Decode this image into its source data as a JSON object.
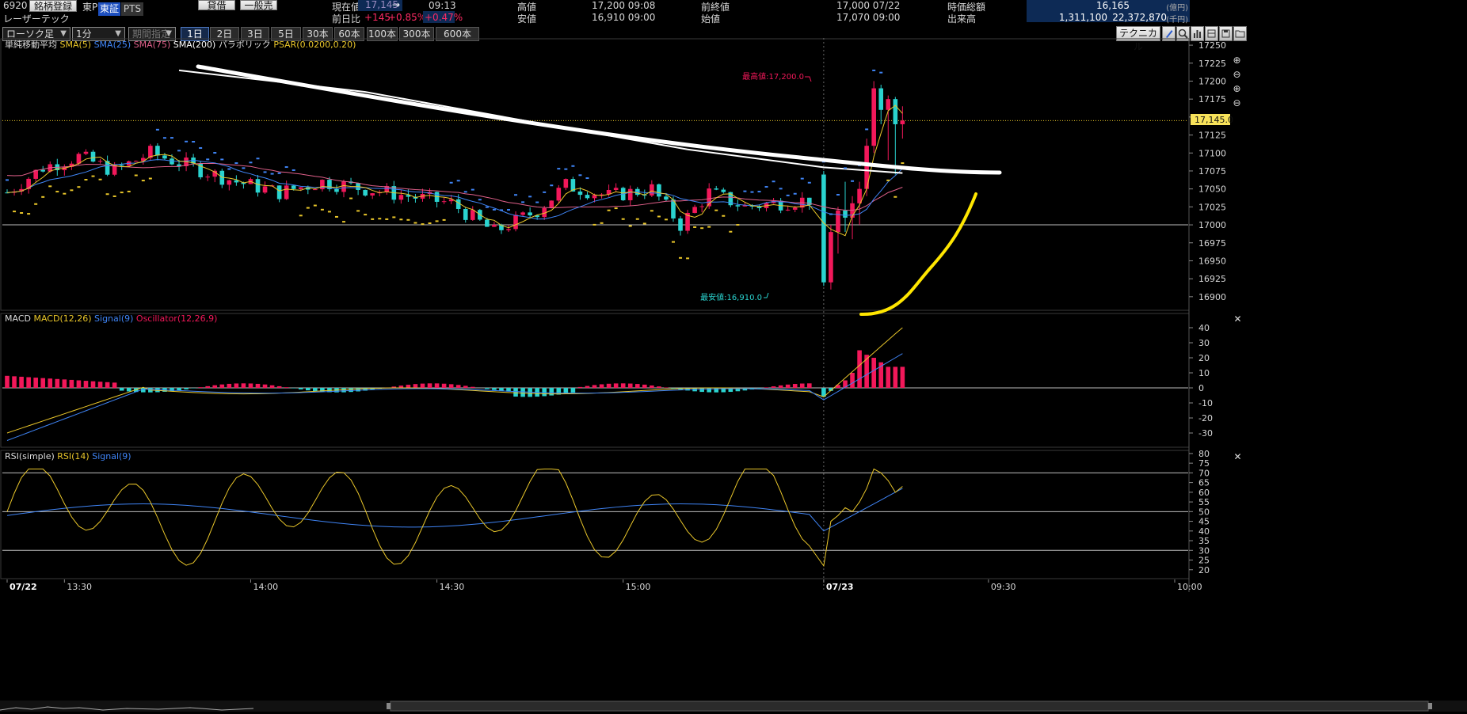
{
  "header": {
    "code": "6920",
    "name": "レーザーテック",
    "register_btn": "銘柄登録",
    "exchange": "東P",
    "market_tse": "東証",
    "market_pts": "PTS",
    "btn_credit": "貸借",
    "btn_general": "一般売",
    "cur_label": "現在値",
    "cur_value": "17,145",
    "cur_arrow": "→",
    "cur_time": "09:13",
    "chg_label": "前日比",
    "chg_value": "+145",
    "chg_pct1": "+0.85%",
    "chg_pct2": "+0.47%",
    "high_label": "高値",
    "high_value": "17,200 09:08",
    "low_label": "安値",
    "low_value": "16,910 09:00",
    "prev_label": "前終値",
    "prev_value": "17,000 07/22",
    "open_label": "始値",
    "open_value": "17,070 09:00",
    "mcap_label": "時価総額",
    "mcap_value": "16,165",
    "mcap_unit": "(億円)",
    "vol_label": "出来高",
    "vol_value": "1,311,100",
    "turnover_value": "22,372,870",
    "turnover_unit": "(千円)"
  },
  "controls": {
    "chart_type": "ローソク足",
    "interval": "1分",
    "period_placeholder": "期間指定",
    "periods": [
      "1日",
      "2日",
      "3日",
      "5日",
      "30本",
      "60本",
      "100本",
      "300本",
      "600本"
    ],
    "technical_btn": "テクニカル"
  },
  "panels": {
    "main_legend": [
      "単純移動平均",
      "SMA(5)",
      "SMA(25)",
      "SMA(75)",
      "SMA(200)",
      "パラボリック",
      "PSAR(0.0200,0.20)"
    ],
    "high_marker": "最高値:17,200.0",
    "low_marker": "最安値:16,910.0",
    "price_tag": "17,145.0",
    "macd_legend": [
      "MACD",
      "MACD(12,26)",
      "Signal(9)",
      "Oscillator(12,26,9)"
    ],
    "rsi_legend": [
      "RSI(simple)",
      "RSI(14)",
      "Signal(9)"
    ]
  },
  "x_axis": [
    "07/22",
    "13:30",
    "14:00",
    "14:30",
    "15:00",
    "07/23",
    "09:30",
    "10:00"
  ],
  "colors": {
    "up": "#f2185a",
    "down": "#2ad3cf",
    "sma5": "#e9c62a",
    "sma25": "#3f84f5",
    "sma75": "#e0608a",
    "sma200": "#ffffff",
    "psar": "#e9c62a",
    "panel_bg": "#000000",
    "accent_blue": "#0d2a55"
  },
  "chart_data": [
    {
      "type": "candlestick",
      "title": "",
      "ylim": [
        16880,
        17260
      ],
      "y_ticks": [
        16900,
        16925,
        16950,
        16975,
        17000,
        17025,
        17050,
        17075,
        17100,
        17125,
        17150,
        17175,
        17200,
        17225,
        17250
      ],
      "reference_line": 17000,
      "last_price": 17145,
      "session_break_x": 114,
      "x_ticks": [
        [
          0,
          "07/22"
        ],
        [
          8,
          "13:30"
        ],
        [
          34,
          "14:00"
        ],
        [
          60,
          "14:30"
        ],
        [
          86,
          "15:00"
        ],
        [
          114,
          "07/23"
        ],
        [
          137,
          "09:30"
        ],
        [
          163,
          "10:00"
        ]
      ],
      "candles_ohlc_day1_keypoints": [
        [
          0,
          17045
        ],
        [
          5,
          17080
        ],
        [
          10,
          17095
        ],
        [
          15,
          17075
        ],
        [
          20,
          17100
        ],
        [
          26,
          17080
        ],
        [
          32,
          17060
        ],
        [
          38,
          17045
        ],
        [
          44,
          17060
        ],
        [
          50,
          17050
        ],
        [
          56,
          17040
        ],
        [
          62,
          17030
        ],
        [
          68,
          16990
        ],
        [
          74,
          17020
        ],
        [
          78,
          17055
        ],
        [
          84,
          17040
        ],
        [
          90,
          17050
        ],
        [
          94,
          17000
        ],
        [
          98,
          17045
        ],
        [
          103,
          17025
        ],
        [
          107,
          17030
        ],
        [
          112,
          17035
        ]
      ],
      "candles_day2_ohlc": [
        [
          17070,
          17075,
          16915,
          16920
        ],
        [
          16920,
          17000,
          16910,
          16990
        ],
        [
          16990,
          17025,
          16960,
          17020
        ],
        [
          17020,
          17060,
          16990,
          17010
        ],
        [
          17010,
          17040,
          16980,
          17030
        ],
        [
          17030,
          17060,
          17000,
          17050
        ],
        [
          17050,
          17120,
          17040,
          17110
        ],
        [
          17110,
          17200,
          17100,
          17190
        ],
        [
          17190,
          17195,
          17140,
          17160
        ],
        [
          17160,
          17180,
          17090,
          17175
        ],
        [
          17175,
          17178,
          17070,
          17140
        ],
        [
          17140,
          17165,
          17120,
          17145
        ]
      ],
      "sma200_line": [
        [
          24,
          17215
        ],
        [
          50,
          17185
        ],
        [
          75,
          17140
        ],
        [
          95,
          17105
        ],
        [
          114,
          17080
        ],
        [
          125,
          17072
        ]
      ]
    },
    {
      "type": "macd",
      "ylim": [
        -40,
        50
      ],
      "y_ticks": [
        -30,
        -20,
        -10,
        0,
        10,
        20,
        30,
        40
      ],
      "macd_end": 40,
      "signal_end": 25,
      "oscillator_day2_end": [
        5,
        10,
        25,
        22,
        20,
        17,
        14
      ]
    },
    {
      "type": "rsi",
      "ylim": [
        15,
        82
      ],
      "y_ticks": [
        20,
        25,
        30,
        35,
        40,
        45,
        50,
        55,
        60,
        65,
        70,
        75,
        80
      ],
      "levels": [
        30,
        50,
        70
      ],
      "rsi_last": 63,
      "signal_last": 63
    }
  ]
}
